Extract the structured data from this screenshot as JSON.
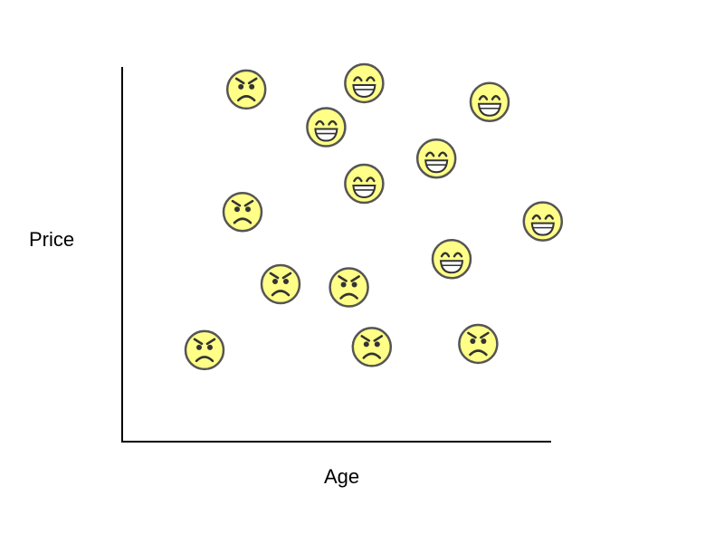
{
  "chart_data": {
    "type": "scatter",
    "title": "",
    "xlabel": "Age",
    "ylabel": "Price",
    "xlim": [
      0,
      10
    ],
    "ylim": [
      0,
      10
    ],
    "grid": false,
    "legend": "none",
    "colors": {
      "face_fill": "#FFFF88",
      "face_stroke": "#555555",
      "axis": "#000000"
    },
    "points": [
      {
        "x": 2.1,
        "y": 9.6,
        "mood": "angry"
      },
      {
        "x": 5.2,
        "y": 9.8,
        "mood": "happy"
      },
      {
        "x": 8.5,
        "y": 9.2,
        "mood": "happy"
      },
      {
        "x": 4.2,
        "y": 8.4,
        "mood": "happy"
      },
      {
        "x": 7.1,
        "y": 7.4,
        "mood": "happy"
      },
      {
        "x": 5.2,
        "y": 6.6,
        "mood": "happy"
      },
      {
        "x": 2.0,
        "y": 5.7,
        "mood": "angry"
      },
      {
        "x": 9.9,
        "y": 5.4,
        "mood": "happy"
      },
      {
        "x": 7.5,
        "y": 4.2,
        "mood": "happy"
      },
      {
        "x": 3.0,
        "y": 3.4,
        "mood": "angry"
      },
      {
        "x": 4.8,
        "y": 3.3,
        "mood": "angry"
      },
      {
        "x": 1.0,
        "y": 1.3,
        "mood": "angry"
      },
      {
        "x": 5.4,
        "y": 1.4,
        "mood": "angry"
      },
      {
        "x": 8.2,
        "y": 1.5,
        "mood": "angry"
      }
    ]
  }
}
